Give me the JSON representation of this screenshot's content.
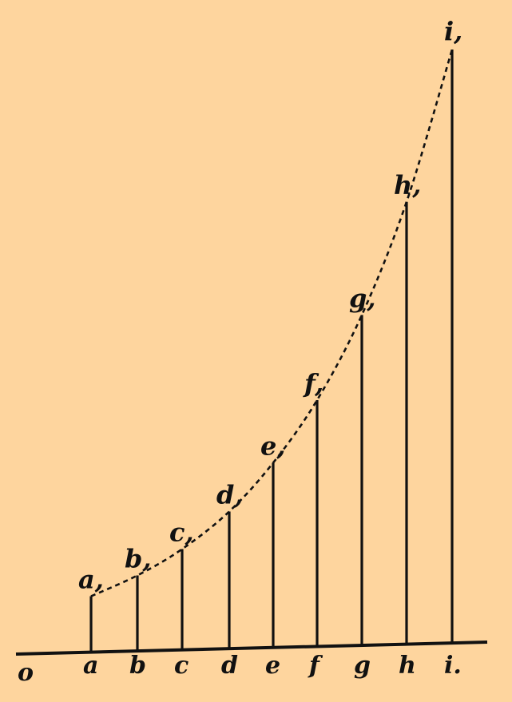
{
  "diagram": {
    "origin_label": "o",
    "ordinates": [
      {
        "base": "a",
        "top": "a,",
        "value": 1.0
      },
      {
        "base": "b",
        "top": "b,",
        "value": 1.35
      },
      {
        "base": "c",
        "top": "c,",
        "value": 1.8
      },
      {
        "base": "d",
        "top": "d,",
        "value": 2.45
      },
      {
        "base": "e",
        "top": "e,",
        "value": 3.3
      },
      {
        "base": "f",
        "top": "f,",
        "value": 4.4
      },
      {
        "base": "g",
        "top": "g,",
        "value": 5.9
      },
      {
        "base": "h",
        "top": "h,",
        "value": 7.9
      },
      {
        "base": "i.",
        "top": "i,",
        "value": 10.6
      }
    ],
    "curve_style": "dashed"
  }
}
